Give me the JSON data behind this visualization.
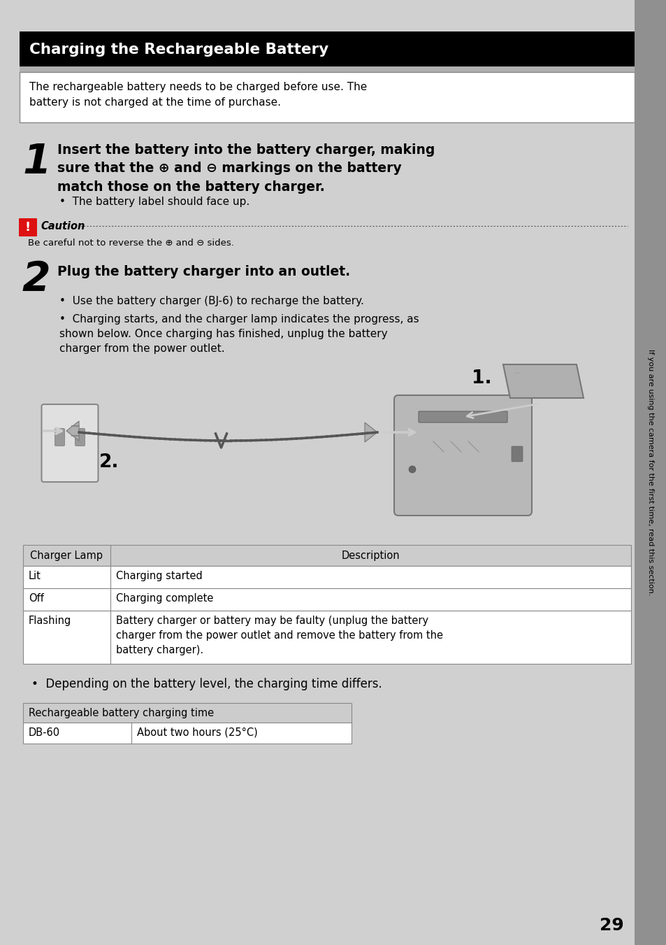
{
  "bg_color": "#d0d0d0",
  "title": "Charging the Rechargeable Battery",
  "title_bg": "#000000",
  "title_color": "#ffffff",
  "intro_text": "The rechargeable battery needs to be charged before use. The\nbattery is not charged at the time of purchase.",
  "step1_num": "1",
  "step1_bold": "Insert the battery into the battery charger, making\nsure that the ⊕ and ⊖ markings on the battery\nmatch those on the battery charger.",
  "step1_bullet": "The battery label should face up.",
  "caution_label": "Caution",
  "caution_text": "Be careful not to reverse the ⊕ and ⊖ sides.",
  "step2_num": "2",
  "step2_bold": "Plug the battery charger into an outlet.",
  "step2_bullet1": "Use the battery charger (BJ-6) to recharge the battery.",
  "step2_bullet2": "Charging starts, and the charger lamp indicates the progress, as\nshown below. Once charging has finished, unplug the battery\ncharger from the power outlet.",
  "table1_headers": [
    "Charger Lamp",
    "Description"
  ],
  "table1_rows": [
    [
      "Lit",
      "Charging started"
    ],
    [
      "Off",
      "Charging complete"
    ],
    [
      "Flashing",
      "Battery charger or battery may be faulty (unplug the battery\ncharger from the power outlet and remove the battery from the\nbattery charger)."
    ]
  ],
  "bullet3": "Depending on the battery level, the charging time differs.",
  "table2_header": "Rechargeable battery charging time",
  "table2_row": [
    "DB-60",
    "About two hours (25°C)"
  ],
  "page_num": "29",
  "sidebar_text": "If you are using the camera for the first time, read this section."
}
